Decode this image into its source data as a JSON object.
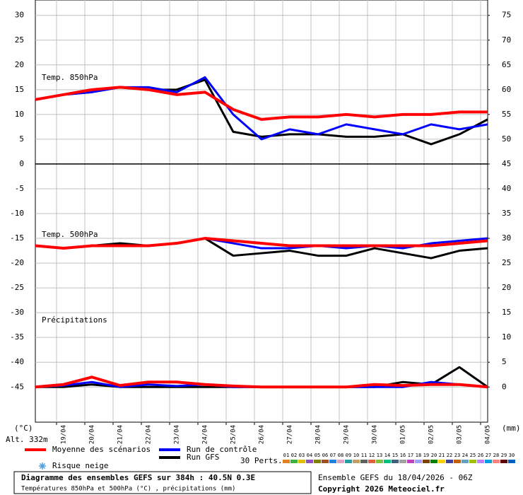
{
  "chart_data": {
    "type": "line",
    "x": [
      0,
      24,
      48,
      72,
      96,
      120,
      144,
      168,
      192,
      216,
      240,
      264,
      288,
      312,
      336,
      360,
      384
    ],
    "xlim": [
      0,
      384
    ],
    "xticks": [
      {
        "value": 18,
        "label": "19/04"
      },
      {
        "value": 42,
        "label": "20/04"
      },
      {
        "value": 66,
        "label": "21/04"
      },
      {
        "value": 90,
        "label": "22/04"
      },
      {
        "value": 114,
        "label": "23/04"
      },
      {
        "value": 138,
        "label": "24/04"
      },
      {
        "value": 162,
        "label": "25/04"
      },
      {
        "value": 186,
        "label": "26/04"
      },
      {
        "value": 210,
        "label": "27/04"
      },
      {
        "value": 234,
        "label": "28/04"
      },
      {
        "value": 258,
        "label": "29/04"
      },
      {
        "value": 282,
        "label": "30/04"
      },
      {
        "value": 306,
        "label": "01/05"
      },
      {
        "value": 330,
        "label": "02/05"
      },
      {
        "value": 354,
        "label": "03/05"
      },
      {
        "value": 378,
        "label": "04/05"
      }
    ],
    "ylim": [
      -52.1,
      33.1
    ],
    "yticks": [
      30,
      25,
      20,
      15,
      10,
      5,
      0,
      -5,
      -10,
      -15,
      -20,
      -25,
      -30,
      -35,
      -40,
      -45
    ],
    "y2lim": [
      -7.1,
      78.1
    ],
    "y2ticks": [
      75,
      70,
      65,
      60,
      55,
      50,
      45,
      40,
      35,
      30,
      25,
      20,
      15,
      10,
      5,
      0
    ],
    "ylabel": "(°C)",
    "y2label": "(mm)",
    "altitude": "Alt. 332m",
    "grid": true,
    "series": [
      {
        "name": "Moyenne des scénarios",
        "color": "#ff0000"
      },
      {
        "name": "Run de contrôle",
        "color": "#0000ff"
      },
      {
        "name": "Run GFS",
        "color": "#000000"
      }
    ],
    "panels": [
      {
        "label": "Temp. 850hPa",
        "axis": "y",
        "values": [
          [
            13,
            14,
            15,
            15.5,
            15,
            14,
            14.5,
            11,
            9,
            9.5,
            9.5,
            10,
            9.5,
            10,
            10,
            10.5,
            10.5
          ],
          [
            13,
            14,
            14.5,
            15.5,
            15.5,
            14.5,
            17.5,
            10,
            5,
            7,
            6,
            8,
            7,
            6,
            8,
            7,
            8
          ],
          [
            13,
            14,
            14.5,
            15.5,
            15,
            15,
            17,
            6.5,
            5.5,
            6,
            6,
            5.5,
            5.5,
            6,
            4,
            6,
            9
          ]
        ]
      },
      {
        "label": "Temp. 500hPa",
        "axis": "y",
        "values": [
          [
            -16.5,
            -17,
            -16.5,
            -16.5,
            -16.5,
            -16,
            -15,
            -15.5,
            -16,
            -16.5,
            -16.5,
            -16.5,
            -16.5,
            -16.5,
            -16.5,
            -16,
            -15.5
          ],
          [
            -16.5,
            -17,
            -16.5,
            -16.5,
            -16.5,
            -16,
            -15,
            -16,
            -17,
            -17,
            -16.5,
            -17,
            -16.5,
            -17,
            -16,
            -15.5,
            -15
          ],
          [
            -16.5,
            -17,
            -16.5,
            -16,
            -16.5,
            -16,
            -15,
            -18.5,
            -18,
            -17.5,
            -18.5,
            -18.5,
            -17,
            -18,
            -19,
            -17.5,
            -17
          ]
        ]
      },
      {
        "label": "Précipitations",
        "axis": "y2",
        "values": [
          [
            0,
            0.5,
            2,
            0.3,
            1,
            1,
            0.5,
            0.2,
            0,
            0,
            0,
            0,
            0.5,
            0.3,
            0.5,
            0.5,
            0
          ],
          [
            0,
            0.3,
            1,
            0,
            0.5,
            0.2,
            0.5,
            0,
            0,
            0,
            0,
            0,
            0,
            0,
            1,
            0.5,
            0
          ],
          [
            0,
            0,
            0.5,
            0,
            0,
            0,
            0,
            0,
            0,
            0,
            0,
            0,
            0,
            1,
            0.5,
            4,
            0
          ]
        ]
      }
    ],
    "snow_label": "Risque neige",
    "perturbations_label": "30 Perts.",
    "perturbations": [
      {
        "name": "01",
        "color": "#e08020"
      },
      {
        "name": "02",
        "color": "#40b040"
      },
      {
        "name": "03",
        "color": "#e0c000"
      },
      {
        "name": "04",
        "color": "#9050c0"
      },
      {
        "name": "05",
        "color": "#808000"
      },
      {
        "name": "06",
        "color": "#a05020"
      },
      {
        "name": "07",
        "color": "#2080e0"
      },
      {
        "name": "08",
        "color": "#e0a0c0"
      },
      {
        "name": "09",
        "color": "#20a0a0"
      },
      {
        "name": "10",
        "color": "#c0a060"
      },
      {
        "name": "11",
        "color": "#606060"
      },
      {
        "name": "12",
        "color": "#e06040"
      },
      {
        "name": "13",
        "color": "#80c040"
      },
      {
        "name": "14",
        "color": "#00c080"
      },
      {
        "name": "15",
        "color": "#406080"
      },
      {
        "name": "16",
        "color": "#a0a0a0"
      },
      {
        "name": "17",
        "color": "#c040c0"
      },
      {
        "name": "18",
        "color": "#a0a0ff"
      },
      {
        "name": "19",
        "color": "#804000"
      },
      {
        "name": "20",
        "color": "#008000"
      },
      {
        "name": "21",
        "color": "#ffd000"
      },
      {
        "name": "22",
        "color": "#4040a0"
      },
      {
        "name": "23",
        "color": "#c06000"
      },
      {
        "name": "24",
        "color": "#60a0c0"
      },
      {
        "name": "25",
        "color": "#a0c000"
      },
      {
        "name": "26",
        "color": "#c080ff"
      },
      {
        "name": "27",
        "color": "#00a0e0"
      },
      {
        "name": "28",
        "color": "#ff8080"
      },
      {
        "name": "29",
        "color": "#600000"
      },
      {
        "name": "30",
        "color": "#0060c0"
      }
    ],
    "title": "Diagramme des ensembles GEFS sur 384h : 40.5N 0.3E",
    "subtitle": "Températures 850hPa et 500hPa (°C) , précipitations (mm)",
    "run_info": "Ensemble GEFS du 18/04/2026 - 06Z",
    "copyright": "Copyright 2026 Meteociel.fr"
  }
}
